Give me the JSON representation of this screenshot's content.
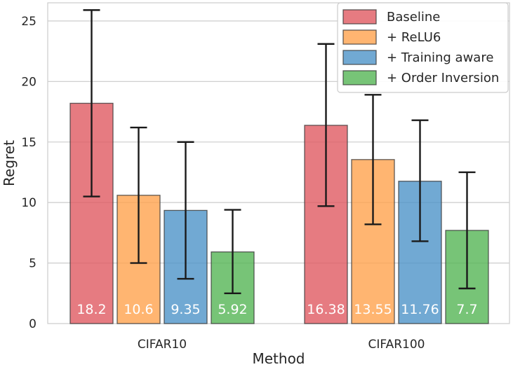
{
  "chart_data": {
    "type": "bar",
    "title": "",
    "xlabel": "Method",
    "ylabel": "Regret",
    "ylim": [
      0,
      26.5
    ],
    "yticks": [
      0,
      5,
      10,
      15,
      20,
      25
    ],
    "grid": true,
    "legend_position": "top-right",
    "categories": [
      "CIFAR10",
      "CIFAR100"
    ],
    "series": [
      {
        "name": "Baseline",
        "color": "#e05a62",
        "values": [
          18.2,
          16.38
        ],
        "labels": [
          "18.2",
          "16.38"
        ],
        "err_low": [
          10.5,
          9.7
        ],
        "err_high": [
          25.9,
          23.1
        ]
      },
      {
        "name": "+ ReLU6",
        "color": "#ffa34d",
        "values": [
          10.6,
          13.55
        ],
        "labels": [
          "10.6",
          "13.55"
        ],
        "err_low": [
          5.0,
          8.2
        ],
        "err_high": [
          16.2,
          18.9
        ]
      },
      {
        "name": "+ Training aware",
        "color": "#4d93c8",
        "values": [
          9.35,
          11.76
        ],
        "labels": [
          "9.35",
          "11.76"
        ],
        "err_low": [
          3.7,
          6.8
        ],
        "err_high": [
          15.0,
          16.8
        ]
      },
      {
        "name": "+ Order Inversion",
        "color": "#55b555",
        "values": [
          5.92,
          7.7
        ],
        "labels": [
          "5.92",
          "7.7"
        ],
        "err_low": [
          2.5,
          2.9
        ],
        "err_high": [
          9.4,
          12.5
        ]
      }
    ]
  }
}
